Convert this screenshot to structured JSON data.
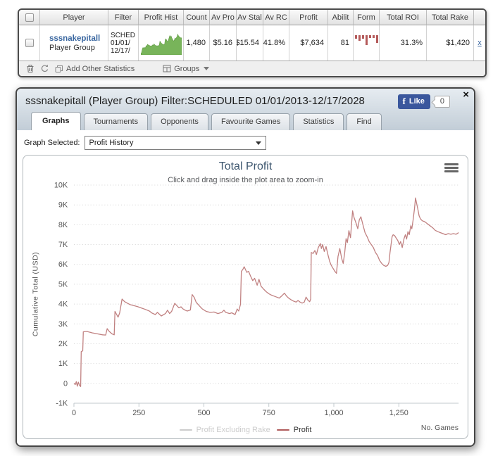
{
  "table": {
    "headers": [
      "Player",
      "Filter",
      "Profit Hist",
      "Count",
      "Av Pro",
      "Av Stal",
      "Av RC",
      "Profit",
      "Abilit",
      "Form",
      "Total ROI",
      "Total Rake"
    ],
    "row": {
      "player_name": "sssnakepitall",
      "player_sub": "Player Group",
      "filter_lines": [
        "SCHED",
        "01/01/",
        "12/17/"
      ],
      "count": "1,480",
      "av_profit": "$5.16",
      "av_stake": "$15.54",
      "av_roi": "41.8%",
      "profit": "$7,634",
      "ability": "81",
      "total_roi": "31.3%",
      "total_rake": "$1,420",
      "remove_label": "x",
      "profit_history_spark": [
        0,
        -0.1,
        1.6,
        2.6,
        2.55,
        2.5,
        2.7,
        2.5,
        3.6,
        3.4,
        4.25,
        4.05,
        3.9,
        3.7,
        3.55,
        3.45,
        3.6,
        3.5,
        4.0,
        3.8,
        4.5,
        4.1,
        3.75,
        3.6,
        3.55,
        3.6,
        3.5,
        3.7,
        4.0,
        5.9,
        5.4,
        4.9,
        4.6,
        4.4,
        4.3,
        4.1,
        4.25,
        6.6,
        7.05,
        6.5,
        5.9,
        5.55,
        6.6,
        7.7,
        8.7,
        7.9,
        8.4,
        7.5,
        6.9,
        6.2,
        5.95,
        6.6,
        7.5,
        7.0,
        7.65,
        8.25,
        9.35,
        8.6,
        8.2,
        7.9,
        7.65,
        7.5,
        7.6
      ],
      "spark_color": "#78b45a",
      "form_bars": [
        5,
        8,
        5,
        14,
        4,
        4,
        11
      ],
      "form_color": "#b45a5a"
    },
    "toolbar": {
      "add_label": "Add Other Statistics",
      "groups_label": "Groups"
    }
  },
  "popup": {
    "title": "sssnakepitall (Player Group) Filter:SCHEDULED 01/01/2013-12/17/2028",
    "close_glyph": "×",
    "facebook": {
      "logo_glyph": "f",
      "like_label": "Like",
      "count": "0"
    },
    "tabs": [
      "Graphs",
      "Tournaments",
      "Opponents",
      "Favourite Games",
      "Statistics",
      "Find"
    ],
    "active_tab": "Graphs",
    "graph_selected_label": "Graph Selected:",
    "graph_selected_value": "Profit History"
  },
  "chart_data": {
    "type": "line",
    "title": "Total Profit",
    "subtitle": "Click and drag inside the plot area to zoom-in",
    "xlabel": "No. Games",
    "ylabel": "Cumulative Total (USD)",
    "xlim": [
      0,
      1480
    ],
    "ylim": [
      -1000,
      10000
    ],
    "x_ticks": [
      0,
      250,
      500,
      750,
      1000,
      1250
    ],
    "x_tick_labels": [
      "0",
      "250",
      "500",
      "750",
      "1,000",
      "1,250"
    ],
    "y_ticks": [
      -1000,
      0,
      1000,
      2000,
      3000,
      4000,
      5000,
      6000,
      7000,
      8000,
      9000,
      10000
    ],
    "y_tick_labels": [
      "-1K",
      "0",
      "1K",
      "2K",
      "3K",
      "4K",
      "5K",
      "6K",
      "7K",
      "8K",
      "9K",
      "10K"
    ],
    "grid": "horizontal-dotted",
    "legend_position": "bottom-center",
    "legend": [
      {
        "name": "Profit Excluding Rake",
        "color": "#cccccc",
        "enabled": false
      },
      {
        "name": "Profit",
        "color": "#b05c5c",
        "enabled": true
      }
    ],
    "series": [
      {
        "name": "Profit Excluding Rake",
        "visible": false,
        "points": []
      },
      {
        "name": "Profit",
        "visible": true,
        "color": "#c08080",
        "points": [
          [
            0,
            0
          ],
          [
            5,
            -60
          ],
          [
            9,
            90
          ],
          [
            13,
            -140
          ],
          [
            17,
            60
          ],
          [
            21,
            -90
          ],
          [
            26,
            -160
          ],
          [
            28,
            1600
          ],
          [
            34,
            1640
          ],
          [
            36,
            2600
          ],
          [
            50,
            2620
          ],
          [
            70,
            2550
          ],
          [
            90,
            2500
          ],
          [
            110,
            2450
          ],
          [
            122,
            2440
          ],
          [
            128,
            2760
          ],
          [
            136,
            2620
          ],
          [
            146,
            2500
          ],
          [
            155,
            2450
          ],
          [
            158,
            3630
          ],
          [
            164,
            3480
          ],
          [
            170,
            3340
          ],
          [
            176,
            3560
          ],
          [
            185,
            4250
          ],
          [
            195,
            4120
          ],
          [
            205,
            4050
          ],
          [
            215,
            3980
          ],
          [
            230,
            3920
          ],
          [
            245,
            3870
          ],
          [
            260,
            3800
          ],
          [
            275,
            3730
          ],
          [
            290,
            3650
          ],
          [
            300,
            3550
          ],
          [
            313,
            3470
          ],
          [
            321,
            3580
          ],
          [
            336,
            3400
          ],
          [
            352,
            3520
          ],
          [
            360,
            3690
          ],
          [
            368,
            3520
          ],
          [
            376,
            3630
          ],
          [
            388,
            4040
          ],
          [
            396,
            3920
          ],
          [
            404,
            3810
          ],
          [
            412,
            3860
          ],
          [
            420,
            3750
          ],
          [
            428,
            3690
          ],
          [
            436,
            3650
          ],
          [
            448,
            3700
          ],
          [
            455,
            4480
          ],
          [
            463,
            4330
          ],
          [
            470,
            4100
          ],
          [
            478,
            3980
          ],
          [
            486,
            3860
          ],
          [
            494,
            3750
          ],
          [
            509,
            3630
          ],
          [
            524,
            3580
          ],
          [
            539,
            3600
          ],
          [
            554,
            3520
          ],
          [
            569,
            3580
          ],
          [
            577,
            3690
          ],
          [
            584,
            3580
          ],
          [
            599,
            3520
          ],
          [
            607,
            3560
          ],
          [
            620,
            3470
          ],
          [
            628,
            3750
          ],
          [
            634,
            3650
          ],
          [
            641,
            3990
          ],
          [
            644,
            5650
          ],
          [
            650,
            5750
          ],
          [
            655,
            5880
          ],
          [
            665,
            5600
          ],
          [
            672,
            5650
          ],
          [
            680,
            5400
          ],
          [
            688,
            5180
          ],
          [
            695,
            5300
          ],
          [
            705,
            4950
          ],
          [
            712,
            5250
          ],
          [
            720,
            4900
          ],
          [
            730,
            4750
          ],
          [
            740,
            4620
          ],
          [
            750,
            4520
          ],
          [
            760,
            4450
          ],
          [
            770,
            4400
          ],
          [
            780,
            4350
          ],
          [
            790,
            4300
          ],
          [
            800,
            4420
          ],
          [
            810,
            4550
          ],
          [
            818,
            4400
          ],
          [
            826,
            4300
          ],
          [
            835,
            4220
          ],
          [
            845,
            4150
          ],
          [
            855,
            4100
          ],
          [
            862,
            4180
          ],
          [
            870,
            4100
          ],
          [
            878,
            4050
          ],
          [
            886,
            4100
          ],
          [
            893,
            4350
          ],
          [
            900,
            4200
          ],
          [
            907,
            4120
          ],
          [
            911,
            4250
          ],
          [
            913,
            6600
          ],
          [
            920,
            6550
          ],
          [
            927,
            6700
          ],
          [
            933,
            6500
          ],
          [
            940,
            6850
          ],
          [
            948,
            7050
          ],
          [
            952,
            6800
          ],
          [
            957,
            7000
          ],
          [
            963,
            6650
          ],
          [
            970,
            6900
          ],
          [
            977,
            6500
          ],
          [
            984,
            6150
          ],
          [
            990,
            5950
          ],
          [
            997,
            5800
          ],
          [
            1004,
            5650
          ],
          [
            1010,
            5550
          ],
          [
            1016,
            6400
          ],
          [
            1023,
            6800
          ],
          [
            1030,
            6300
          ],
          [
            1036,
            6050
          ],
          [
            1042,
            6600
          ],
          [
            1047,
            7300
          ],
          [
            1052,
            7100
          ],
          [
            1058,
            7700
          ],
          [
            1064,
            7350
          ],
          [
            1072,
            8700
          ],
          [
            1078,
            8350
          ],
          [
            1085,
            8100
          ],
          [
            1092,
            7800
          ],
          [
            1098,
            8250
          ],
          [
            1104,
            8400
          ],
          [
            1112,
            8000
          ],
          [
            1120,
            7600
          ],
          [
            1128,
            7400
          ],
          [
            1136,
            7150
          ],
          [
            1144,
            7000
          ],
          [
            1152,
            6850
          ],
          [
            1160,
            6600
          ],
          [
            1168,
            6450
          ],
          [
            1176,
            6200
          ],
          [
            1184,
            6050
          ],
          [
            1192,
            5950
          ],
          [
            1200,
            5900
          ],
          [
            1207,
            5950
          ],
          [
            1212,
            6100
          ],
          [
            1216,
            6600
          ],
          [
            1220,
            7000
          ],
          [
            1224,
            7400
          ],
          [
            1228,
            7500
          ],
          [
            1234,
            7450
          ],
          [
            1240,
            7320
          ],
          [
            1246,
            7200
          ],
          [
            1252,
            7000
          ],
          [
            1257,
            7150
          ],
          [
            1263,
            6850
          ],
          [
            1270,
            7300
          ],
          [
            1275,
            7500
          ],
          [
            1280,
            7280
          ],
          [
            1285,
            7650
          ],
          [
            1290,
            7500
          ],
          [
            1296,
            7950
          ],
          [
            1300,
            7800
          ],
          [
            1305,
            8250
          ],
          [
            1310,
            8800
          ],
          [
            1314,
            9350
          ],
          [
            1318,
            9100
          ],
          [
            1323,
            8800
          ],
          [
            1328,
            8450
          ],
          [
            1333,
            8300
          ],
          [
            1340,
            8200
          ],
          [
            1350,
            8150
          ],
          [
            1360,
            8050
          ],
          [
            1370,
            7950
          ],
          [
            1380,
            7850
          ],
          [
            1390,
            7720
          ],
          [
            1400,
            7650
          ],
          [
            1410,
            7600
          ],
          [
            1420,
            7550
          ],
          [
            1430,
            7500
          ],
          [
            1440,
            7550
          ],
          [
            1450,
            7520
          ],
          [
            1460,
            7550
          ],
          [
            1470,
            7520
          ],
          [
            1480,
            7600
          ]
        ]
      }
    ]
  }
}
